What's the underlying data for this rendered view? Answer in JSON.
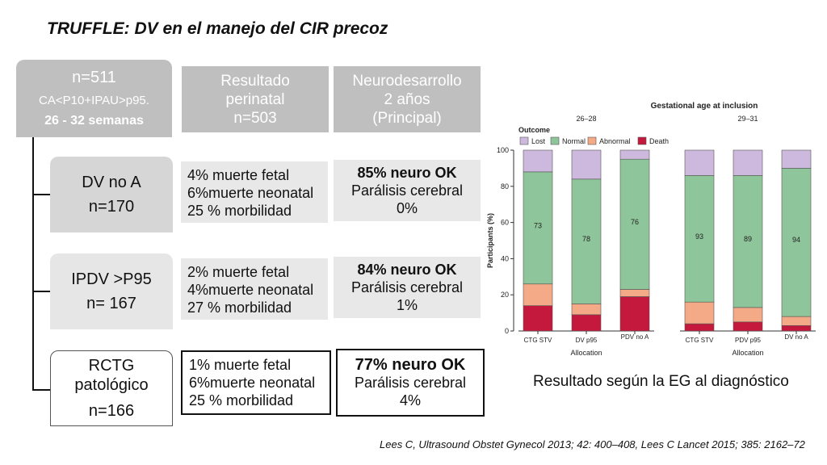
{
  "title": "TRUFFLE: DV en el manejo del CIR precoz",
  "cohort": {
    "n": "n=511",
    "criteria": "CA<P10+IPAU>p95.",
    "weeks": "26 - 32 semanas"
  },
  "headers": {
    "perinatal": [
      "Resultado",
      "perinatal",
      "n=503"
    ],
    "neuro": [
      "Neurodesarrollo",
      "2 años",
      "(Principal)"
    ]
  },
  "groups": [
    {
      "name": [
        "DV no A"
      ],
      "n": "n=170",
      "perinatal": [
        "4% muerte fetal",
        "6%muerte neonatal",
        "25 % morbilidad"
      ],
      "neuro": {
        "ok": "85% neuro OK",
        "pc_label": "Parálisis cerebral",
        "pc_value": "0%"
      }
    },
    {
      "name": [
        "IPDV >P95"
      ],
      "n": "n= 167",
      "perinatal": [
        "2% muerte fetal",
        "4%muerte neonatal",
        "27 % morbilidad"
      ],
      "neuro": {
        "ok": "84% neuro OK",
        "pc_label": "Parálisis cerebral",
        "pc_value": "1%"
      }
    },
    {
      "name": [
        "RCTG",
        "patológico"
      ],
      "n": "n=166",
      "perinatal": [
        "1% muerte fetal",
        "6%muerte neonatal",
        "25 % morbilidad"
      ],
      "neuro": {
        "ok": "77% neuro OK",
        "pc_label": "Parálisis cerebral",
        "pc_value": "4%"
      }
    }
  ],
  "caption": "Resultado según la EG al diagnóstico",
  "reference": "Lees C, Ultrasound Obstet Gynecol 2013; 42: 400–408, Lees C Lancet 2015; 385: 2162–72",
  "chart_data": {
    "type": "bar",
    "stacked": true,
    "title": "Gestational age at inclusion",
    "ylabel": "Participants (%)",
    "xlabel": "Allocation",
    "ylim": [
      0,
      100
    ],
    "yticks": [
      0,
      20,
      40,
      60,
      80,
      100
    ],
    "legend_title": "Outcome",
    "legend_position": "top-left",
    "panels": [
      {
        "label": "26–28",
        "categories": [
          "CTG STV",
          "DV p95",
          "PDV no A"
        ],
        "normal_labels": [
          "73",
          "78",
          "76"
        ],
        "series": [
          {
            "name": "Death",
            "color": "#c4183c",
            "values": [
              14,
              9,
              19
            ]
          },
          {
            "name": "Abnormal",
            "color": "#f4a987",
            "values": [
              12,
              6,
              4
            ]
          },
          {
            "name": "Normal",
            "color": "#8fc59a",
            "values": [
              62,
              69,
              72
            ]
          },
          {
            "name": "Lost",
            "color": "#cdb9dd",
            "values": [
              12,
              16,
              5
            ]
          }
        ]
      },
      {
        "label": "29–31",
        "categories": [
          "CTG STV",
          "PDV p95",
          "DV no A"
        ],
        "normal_labels": [
          "93",
          "89",
          "94"
        ],
        "series": [
          {
            "name": "Death",
            "color": "#c4183c",
            "values": [
              4,
              5,
              3
            ]
          },
          {
            "name": "Abnormal",
            "color": "#f4a987",
            "values": [
              12,
              8,
              5
            ]
          },
          {
            "name": "Normal",
            "color": "#8fc59a",
            "values": [
              70,
              73,
              82
            ]
          },
          {
            "name": "Lost",
            "color": "#cdb9dd",
            "values": [
              14,
              14,
              10
            ]
          }
        ]
      }
    ],
    "legend_order": [
      "Lost",
      "Normal",
      "Abnormal",
      "Death"
    ]
  }
}
